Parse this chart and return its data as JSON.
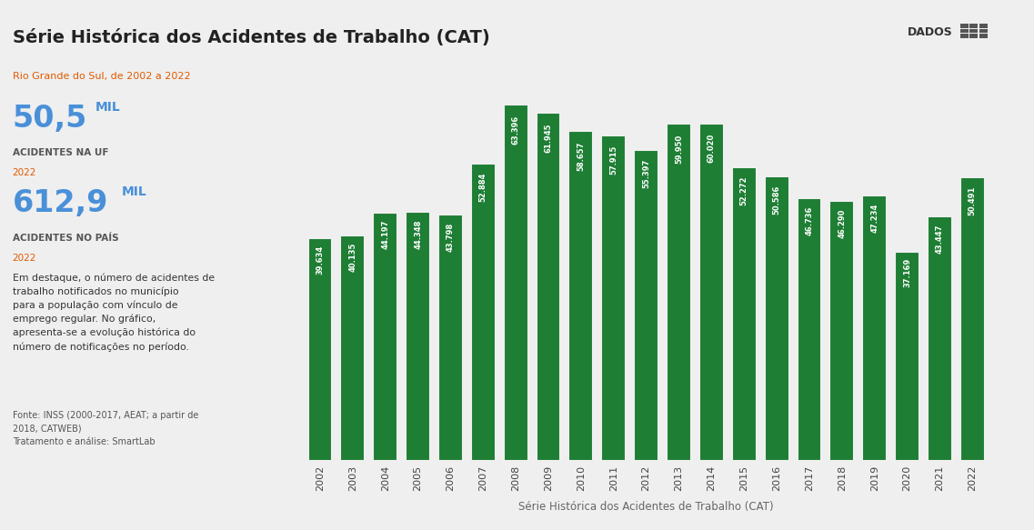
{
  "title": "Série Histórica dos Acidentes de Trabalho (CAT)",
  "subtitle": "Rio Grande do Sul, de 2002 a 2022",
  "stat1_big": "50,5",
  "stat1_unit": "MIL",
  "stat1_label": "ACIDENTES NA UF",
  "stat1_year": "2022",
  "stat2_big": "612,9",
  "stat2_unit": "MIL",
  "stat2_label": "ACIDENTES NO PAÍS",
  "stat2_year": "2022",
  "text_body": "Em destaque, o número de acidentes de\ntrabalho notificados no município\npara a população com vínculo de\nemprego regular. No gráfico,\napresenta-se a evolução histórica do\nnúmero de notificações no período.",
  "source": "Fonte: INSS (2000-2017, AEAT; a partir de\n2018, CATWEB)\nTratamento e análise: SmartLab",
  "xlabel": "Série Histórica dos Acidentes de Trabalho (CAT)",
  "bar_color": "#1e7e34",
  "background_color": "#efefef",
  "plot_bg_color": "#efefef",
  "years": [
    2002,
    2003,
    2004,
    2005,
    2006,
    2007,
    2008,
    2009,
    2010,
    2011,
    2012,
    2013,
    2014,
    2015,
    2016,
    2017,
    2018,
    2019,
    2020,
    2021,
    2022
  ],
  "values": [
    39634,
    40135,
    44197,
    44348,
    43798,
    52884,
    63396,
    61945,
    58657,
    57915,
    55397,
    59950,
    60020,
    52272,
    50586,
    46736,
    46290,
    47234,
    37169,
    43447,
    50491
  ],
  "dados_label": "DADOS"
}
